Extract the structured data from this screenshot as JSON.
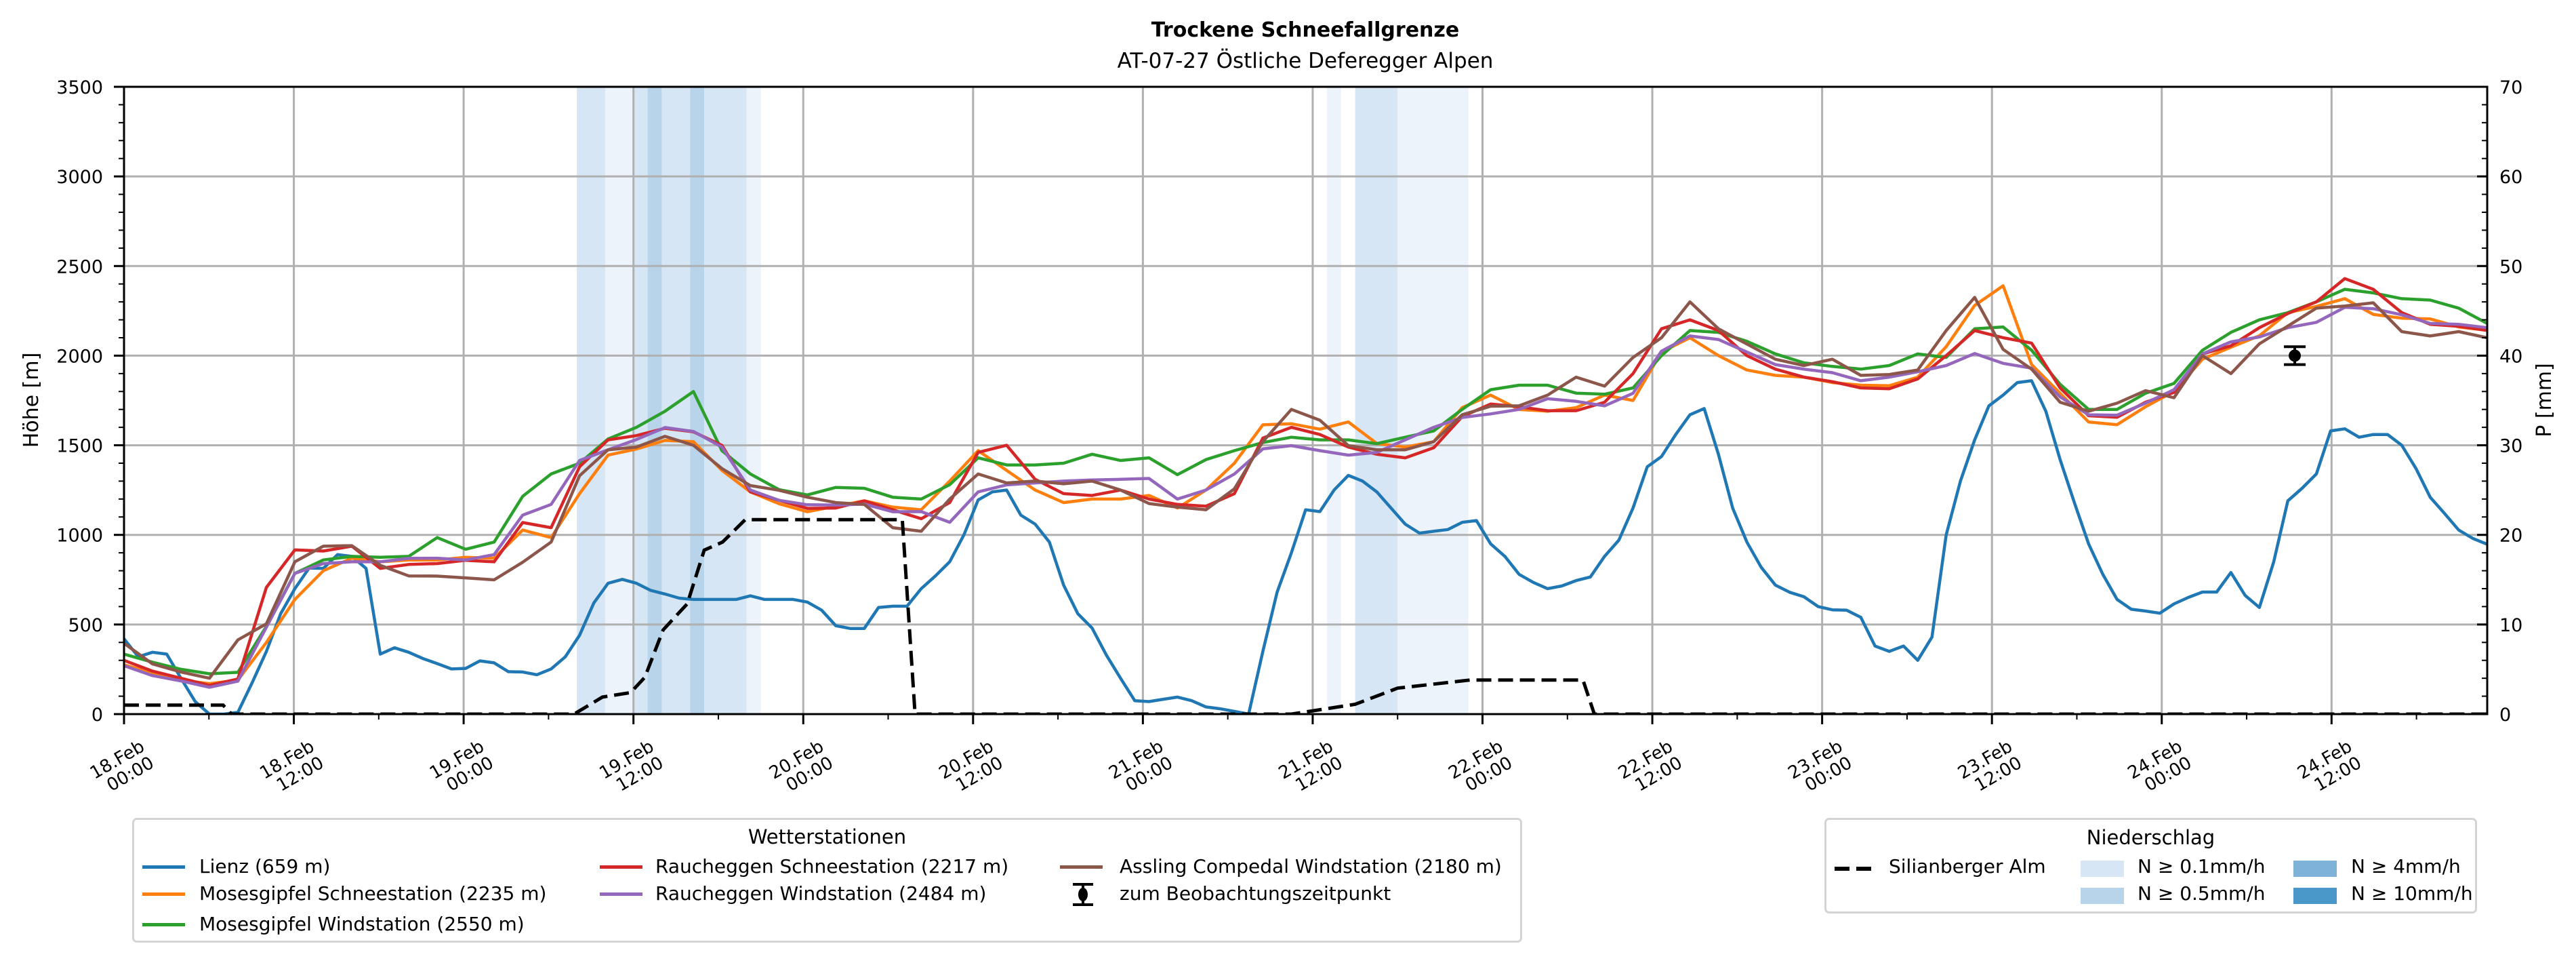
{
  "chart_data": {
    "type": "line",
    "title": "Trockene Schneefallgrenze",
    "subtitle": "AT-07-27 Östliche Deferegger Alpen",
    "ylabel": "Höhe [m]",
    "ylabel_right": "P [mm]",
    "xlim_hours": [
      0,
      167
    ],
    "ylim": [
      0,
      3500
    ],
    "ylim_right": [
      0,
      70
    ],
    "grid": true,
    "yticks": [
      0,
      500,
      1000,
      1500,
      2000,
      2500,
      3000,
      3500
    ],
    "yticks_right": [
      0,
      10,
      20,
      30,
      40,
      50,
      60,
      70
    ],
    "y_minor_step": 100,
    "y_minor_step_right": 2,
    "x_minor_step_hours": 6,
    "xticks": [
      {
        "hour": 0,
        "date": "18.Feb",
        "time": "00:00"
      },
      {
        "hour": 12,
        "date": "18.Feb",
        "time": "12:00"
      },
      {
        "hour": 24,
        "date": "19.Feb",
        "time": "00:00"
      },
      {
        "hour": 36,
        "date": "19.Feb",
        "time": "12:00"
      },
      {
        "hour": 48,
        "date": "20.Feb",
        "time": "00:00"
      },
      {
        "hour": 60,
        "date": "20.Feb",
        "time": "12:00"
      },
      {
        "hour": 72,
        "date": "21.Feb",
        "time": "00:00"
      },
      {
        "hour": 84,
        "date": "21.Feb",
        "time": "12:00"
      },
      {
        "hour": 96,
        "date": "22.Feb",
        "time": "00:00"
      },
      {
        "hour": 108,
        "date": "22.Feb",
        "time": "12:00"
      },
      {
        "hour": 120,
        "date": "23.Feb",
        "time": "00:00"
      },
      {
        "hour": 132,
        "date": "23.Feb",
        "time": "12:00"
      },
      {
        "hour": 144,
        "date": "24.Feb",
        "time": "00:00"
      },
      {
        "hour": 156,
        "date": "24.Feb",
        "time": "12:00"
      }
    ],
    "stations_legend_title": "Wetterstationen",
    "series": [
      {
        "name": "Lienz (659 m)",
        "color": "#1f77b4",
        "step_hours": 1.006,
        "values": [
          420,
          320,
          345,
          335,
          200,
          70,
          0,
          0,
          10,
          175,
          350,
          560,
          700,
          815,
          813,
          890,
          880,
          813,
          335,
          370,
          345,
          310,
          282,
          252,
          255,
          297,
          286,
          237,
          235,
          220,
          252,
          320,
          440,
          620,
          730,
          752,
          730,
          690,
          670,
          647,
          640,
          640,
          640,
          640,
          660,
          640,
          640,
          640,
          625,
          580,
          493,
          478,
          478,
          595,
          602,
          602,
          700,
          771,
          850,
          1000,
          1195,
          1240,
          1250,
          1110,
          1060,
          960,
          720,
          560,
          480,
          330,
          200,
          75,
          70,
          83,
          95,
          75,
          40,
          30,
          15,
          0,
          350,
          680,
          900,
          1140,
          1130,
          1250,
          1332,
          1300,
          1240,
          1150,
          1060,
          1010,
          1020,
          1030,
          1070,
          1080,
          950,
          880,
          780,
          735,
          700,
          715,
          745,
          765,
          880,
          970,
          1150,
          1380,
          1437,
          1560,
          1670,
          1705,
          1450,
          1150,
          960,
          820,
          720,
          680,
          655,
          600,
          582,
          580,
          540,
          380,
          350,
          380,
          300,
          430,
          1000,
          1300,
          1530,
          1720,
          1780,
          1850,
          1860,
          1690,
          1420,
          1180,
          950,
          780,
          640,
          585,
          575,
          563,
          615,
          651,
          681,
          681,
          790,
          662,
          595,
          847,
          1190,
          1260,
          1340,
          1580,
          1592,
          1545,
          1560,
          1560,
          1500,
          1370,
          1210,
          1120,
          1027,
          980,
          948,
          930
        ]
      },
      {
        "name": "Mosesgipfel Schneestation (2235 m)",
        "color": "#ff7f0e",
        "step_hours": 2.012,
        "values": [
          275,
          230,
          190,
          170,
          190,
          400,
          640,
          800,
          870,
          850,
          860,
          860,
          875,
          870,
          1027,
          985,
          1230,
          1445,
          1479,
          1527,
          1520,
          1360,
          1240,
          1174,
          1129,
          1160,
          1190,
          1155,
          1140,
          1300,
          1470,
          1360,
          1250,
          1180,
          1200,
          1200,
          1220,
          1150,
          1250,
          1400,
          1614,
          1620,
          1590,
          1630,
          1510,
          1490,
          1520,
          1710,
          1780,
          1700,
          1690,
          1710,
          1780,
          1750,
          2020,
          2100,
          2000,
          1920,
          1890,
          1880,
          1850,
          1835,
          1832,
          1880,
          2050,
          2280,
          2390,
          1950,
          1790,
          1630,
          1615,
          1715,
          1800,
          1980,
          2047,
          2111,
          2240,
          2275,
          2318,
          2230,
          2209,
          2205,
          2160,
          2141
        ]
      },
      {
        "name": "Mosesgipfel Windstation (2550 m)",
        "color": "#2ca02c",
        "step_hours": 2.012,
        "values": [
          335,
          290,
          250,
          225,
          233,
          490,
          785,
          860,
          880,
          875,
          880,
          985,
          920,
          960,
          1215,
          1340,
          1400,
          1535,
          1600,
          1690,
          1800,
          1470,
          1340,
          1253,
          1223,
          1265,
          1260,
          1210,
          1200,
          1280,
          1430,
          1390,
          1390,
          1400,
          1450,
          1415,
          1430,
          1336,
          1420,
          1470,
          1515,
          1545,
          1530,
          1530,
          1509,
          1545,
          1580,
          1700,
          1810,
          1835,
          1835,
          1791,
          1785,
          1820,
          2000,
          2140,
          2130,
          2080,
          2010,
          1960,
          1940,
          1925,
          1945,
          2010,
          1990,
          2150,
          2160,
          2030,
          1840,
          1700,
          1700,
          1790,
          1845,
          2030,
          2130,
          2200,
          2240,
          2300,
          2370,
          2350,
          2318,
          2310,
          2265,
          2180
        ]
      },
      {
        "name": "Raucheggen Schneestation (2217 m)",
        "color": "#d62728",
        "step_hours": 2.012,
        "values": [
          300,
          240,
          200,
          160,
          196,
          707,
          916,
          910,
          937,
          813,
          835,
          840,
          858,
          850,
          1069,
          1040,
          1380,
          1530,
          1554,
          1595,
          1575,
          1500,
          1240,
          1193,
          1148,
          1150,
          1190,
          1140,
          1090,
          1180,
          1460,
          1500,
          1310,
          1230,
          1220,
          1250,
          1200,
          1170,
          1160,
          1230,
          1540,
          1600,
          1560,
          1490,
          1450,
          1430,
          1486,
          1660,
          1730,
          1715,
          1693,
          1693,
          1740,
          1900,
          2150,
          2200,
          2140,
          2000,
          1925,
          1880,
          1855,
          1820,
          1815,
          1870,
          2000,
          2140,
          2100,
          2070,
          1820,
          1665,
          1656,
          1740,
          1795,
          2010,
          2055,
          2156,
          2235,
          2300,
          2430,
          2370,
          2240,
          2175,
          2164,
          2141
        ]
      },
      {
        "name": "Raucheggen Windstation (2484 m)",
        "color": "#9467bd",
        "step_hours": 2.012,
        "values": [
          270,
          215,
          185,
          150,
          184,
          485,
          785,
          840,
          850,
          850,
          869,
          870,
          860,
          890,
          1110,
          1170,
          1415,
          1475,
          1532,
          1599,
          1577,
          1490,
          1250,
          1193,
          1168,
          1166,
          1172,
          1129,
          1130,
          1070,
          1240,
          1279,
          1290,
          1300,
          1306,
          1310,
          1315,
          1200,
          1250,
          1340,
          1480,
          1498,
          1470,
          1445,
          1460,
          1530,
          1600,
          1655,
          1675,
          1700,
          1760,
          1745,
          1720,
          1790,
          2025,
          2110,
          2090,
          2020,
          1950,
          1925,
          1905,
          1860,
          1880,
          1910,
          1945,
          2012,
          1957,
          1930,
          1770,
          1670,
          1668,
          1735,
          1810,
          2010,
          2077,
          2104,
          2156,
          2186,
          2270,
          2262,
          2228,
          2180,
          2175,
          2156
        ]
      },
      {
        "name": "Assling Compedal Windstation (2180 m)",
        "color": "#8c564b",
        "step_hours": 2.012,
        "values": [
          395,
          280,
          235,
          200,
          414,
          504,
          850,
          937,
          940,
          830,
          771,
          770,
          760,
          749,
          847,
          960,
          1330,
          1475,
          1490,
          1550,
          1500,
          1370,
          1275,
          1249,
          1210,
          1180,
          1170,
          1040,
          1020,
          1200,
          1340,
          1290,
          1300,
          1285,
          1300,
          1250,
          1175,
          1155,
          1140,
          1257,
          1520,
          1700,
          1640,
          1498,
          1475,
          1475,
          1520,
          1670,
          1718,
          1720,
          1780,
          1880,
          1830,
          1990,
          2100,
          2300,
          2150,
          2065,
          1980,
          1945,
          1980,
          1890,
          1895,
          1920,
          2140,
          2325,
          2035,
          1925,
          1740,
          1690,
          1735,
          1805,
          1765,
          2000,
          1900,
          2066,
          2165,
          2265,
          2277,
          2295,
          2134,
          2110,
          2134,
          2100
        ]
      }
    ],
    "observation": {
      "label": "zum Beobachtungszeitpunkt",
      "hour": 153.4,
      "value": 2000,
      "error": 50,
      "color": "#000000"
    },
    "precipitation_legend_title": "Niederschlag",
    "precipitation_line": {
      "name": "Silianberger Alm",
      "axis": "right",
      "color": "#000000",
      "points": [
        [
          0,
          1.0
        ],
        [
          7.0,
          1.0
        ],
        [
          7.6,
          0
        ],
        [
          31.8,
          0
        ],
        [
          33.8,
          1.9
        ],
        [
          35.8,
          2.4
        ],
        [
          36.8,
          4.1
        ],
        [
          38.1,
          9.4
        ],
        [
          39.8,
          12.3
        ],
        [
          41.0,
          18.3
        ],
        [
          42.3,
          19.2
        ],
        [
          43.9,
          21.7
        ],
        [
          55.0,
          21.7
        ],
        [
          55.9,
          0
        ],
        [
          82.5,
          0
        ],
        [
          87.0,
          1.1
        ],
        [
          90.0,
          2.9
        ],
        [
          95.1,
          3.8
        ],
        [
          103.1,
          3.8
        ],
        [
          103.9,
          0
        ],
        [
          167,
          0
        ]
      ]
    },
    "precipitation_levels": [
      {
        "label": "N ≥ 0.1mm/h",
        "color": "#d6e6f4"
      },
      {
        "label": "N ≥ 0.5mm/h",
        "color": "#b7d4ea"
      },
      {
        "label": "N ≥ 4mm/h",
        "color": "#7fb2d9"
      },
      {
        "label": "N ≥ 10mm/h",
        "color": "#4a97c9"
      }
    ],
    "trace_band_color": "#edf3fa",
    "precipitation_bands": [
      {
        "start_hour": 32,
        "end_hour": 34,
        "level": 0
      },
      {
        "start_hour": 34,
        "end_hour": 36,
        "level": -1
      },
      {
        "start_hour": 36,
        "end_hour": 37,
        "level": 0
      },
      {
        "start_hour": 37,
        "end_hour": 38,
        "level": 1
      },
      {
        "start_hour": 38,
        "end_hour": 40,
        "level": 0
      },
      {
        "start_hour": 40,
        "end_hour": 41,
        "level": 1
      },
      {
        "start_hour": 41,
        "end_hour": 44,
        "level": 0
      },
      {
        "start_hour": 44,
        "end_hour": 45,
        "level": -1
      },
      {
        "start_hour": 85,
        "end_hour": 86,
        "level": -1
      },
      {
        "start_hour": 87,
        "end_hour": 90,
        "level": 0
      },
      {
        "start_hour": 90,
        "end_hour": 95,
        "level": -1
      }
    ]
  }
}
